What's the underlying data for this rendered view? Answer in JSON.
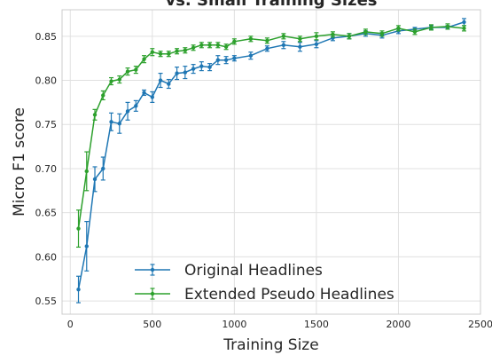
{
  "chart_data": {
    "type": "line",
    "title": "vs. Small Training Sizes",
    "xlabel": "Training Size",
    "ylabel": "Micro F1 score",
    "xlim": [
      -50,
      2500
    ],
    "ylim": [
      0.535,
      0.88
    ],
    "xticks": [
      0,
      500,
      1000,
      1500,
      2000,
      2500
    ],
    "yticks": [
      0.55,
      0.6,
      0.65,
      0.7,
      0.75,
      0.8,
      0.85
    ],
    "grid": true,
    "legend_position": "bottom-center",
    "series": [
      {
        "name": "Original Headlines",
        "color": "#1f77b4",
        "x": [
          50,
          100,
          150,
          200,
          250,
          300,
          350,
          400,
          450,
          500,
          550,
          600,
          650,
          700,
          750,
          800,
          850,
          900,
          950,
          1000,
          1100,
          1200,
          1300,
          1400,
          1500,
          1600,
          1700,
          1800,
          1900,
          2000,
          2100,
          2200,
          2300,
          2400
        ],
        "y": [
          0.563,
          0.612,
          0.688,
          0.7,
          0.753,
          0.751,
          0.765,
          0.771,
          0.786,
          0.781,
          0.8,
          0.796,
          0.808,
          0.809,
          0.813,
          0.816,
          0.815,
          0.823,
          0.823,
          0.825,
          0.828,
          0.836,
          0.84,
          0.838,
          0.841,
          0.848,
          0.85,
          0.853,
          0.851,
          0.856,
          0.858,
          0.86,
          0.86,
          0.866
        ],
        "err": [
          0.015,
          0.028,
          0.014,
          0.013,
          0.01,
          0.011,
          0.01,
          0.006,
          0.003,
          0.006,
          0.008,
          0.005,
          0.007,
          0.007,
          0.005,
          0.005,
          0.004,
          0.005,
          0.004,
          0.003,
          0.004,
          0.003,
          0.004,
          0.005,
          0.004,
          0.003,
          0.003,
          0.003,
          0.003,
          0.003,
          0.002,
          0.002,
          0.002,
          0.004
        ]
      },
      {
        "name": "Extended Pseudo Headlines",
        "color": "#2ca02c",
        "x": [
          50,
          100,
          150,
          200,
          250,
          300,
          350,
          400,
          450,
          500,
          550,
          600,
          650,
          700,
          750,
          800,
          850,
          900,
          950,
          1000,
          1100,
          1200,
          1300,
          1400,
          1500,
          1600,
          1700,
          1800,
          1900,
          2000,
          2100,
          2200,
          2300,
          2400
        ],
        "y": [
          0.632,
          0.697,
          0.761,
          0.783,
          0.799,
          0.801,
          0.81,
          0.812,
          0.824,
          0.832,
          0.83,
          0.83,
          0.833,
          0.834,
          0.837,
          0.84,
          0.84,
          0.84,
          0.838,
          0.844,
          0.847,
          0.845,
          0.85,
          0.847,
          0.85,
          0.852,
          0.85,
          0.855,
          0.853,
          0.859,
          0.855,
          0.86,
          0.861,
          0.859
        ],
        "err": [
          0.021,
          0.022,
          0.006,
          0.005,
          0.004,
          0.004,
          0.004,
          0.004,
          0.004,
          0.004,
          0.003,
          0.003,
          0.003,
          0.003,
          0.003,
          0.003,
          0.003,
          0.003,
          0.003,
          0.003,
          0.003,
          0.003,
          0.003,
          0.003,
          0.004,
          0.003,
          0.003,
          0.003,
          0.003,
          0.003,
          0.003,
          0.003,
          0.003,
          0.003
        ]
      }
    ]
  }
}
